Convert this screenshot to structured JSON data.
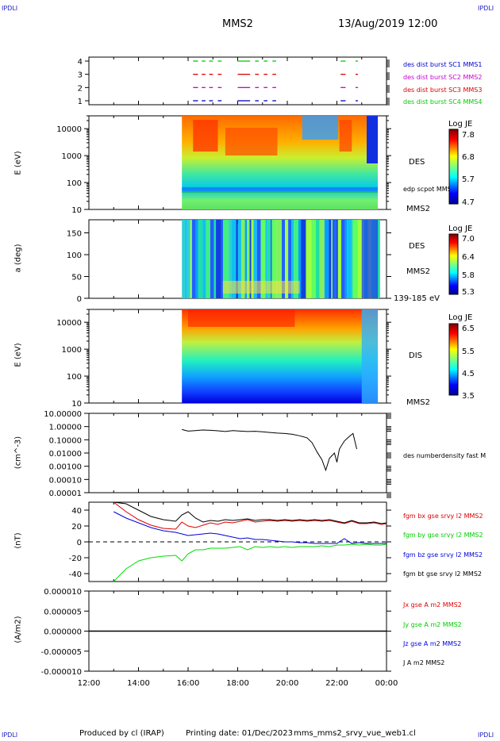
{
  "header": {
    "corner_tl": "IPDLI",
    "corner_tr": "IPDLI",
    "corner_bl": "IPDLI",
    "corner_br": "IPDLI",
    "spacecraft": "MMS2",
    "datetime": "13/Aug/2019 12:00"
  },
  "footer": {
    "produced": "Produced by cl (IRAP)",
    "printing": "Printing date: 01/Dec/2023",
    "file": "mms_mms2_srvy_vue_web1.cl"
  },
  "colors": {
    "mms1": "#0000cc",
    "mms2": "#cc00cc",
    "mms3": "#dd0000",
    "mms4": "#00cc00",
    "bx": "#dd0000",
    "by": "#00dd00",
    "bz": "#0000dd",
    "bt": "#000000"
  },
  "chart_data": [
    {
      "type": "line",
      "id": "burst",
      "ylim": [
        0.7,
        4.3
      ],
      "yticks": [
        "4",
        "3",
        "2",
        "1"
      ],
      "legend": [
        {
          "label": "des dist burst SC1 MMS1",
          "color": "#0000cc"
        },
        {
          "label": "des dist burst SC2 MMS2",
          "color": "#cc00cc"
        },
        {
          "label": "des dist burst SC3 MMS3",
          "color": "#dd0000"
        },
        {
          "label": "des dist burst SC4 MMS4",
          "color": "#00cc00"
        }
      ],
      "intervals_hours": [
        [
          16.2,
          16.4
        ],
        [
          16.55,
          16.7
        ],
        [
          16.85,
          17.0
        ],
        [
          17.2,
          17.35
        ],
        [
          18.0,
          18.5
        ],
        [
          18.7,
          18.85
        ],
        [
          19.05,
          19.2
        ],
        [
          19.4,
          19.55
        ],
        [
          22.15,
          22.35
        ],
        [
          22.75,
          22.85
        ]
      ]
    },
    {
      "type": "heatmap",
      "id": "des-energy",
      "ylabel": "E (eV)",
      "yscale": "log",
      "ylim": [
        10,
        30000
      ],
      "yticks": [
        "10000",
        "1000",
        "100",
        "10"
      ],
      "colorbar": {
        "title": "Log JE",
        "ticks": [
          "7.8",
          "6.8",
          "5.7",
          "4.7"
        ]
      },
      "labels": [
        "DES",
        "edp scpot MMS2",
        "MMS2"
      ]
    },
    {
      "type": "heatmap",
      "id": "des-pitch",
      "ylabel": "a (deg)",
      "ylim": [
        0,
        180
      ],
      "yticks": [
        "150",
        "100",
        "50",
        "0"
      ],
      "colorbar": {
        "title": "Log JE",
        "ticks": [
          "7.0",
          "6.4",
          "5.8",
          "5.3"
        ]
      },
      "labels": [
        "DES",
        "MMS2",
        "139-185 eV"
      ]
    },
    {
      "type": "heatmap",
      "id": "dis-energy",
      "ylabel": "E (eV)",
      "yscale": "log",
      "ylim": [
        10,
        30000
      ],
      "yticks": [
        "10000",
        "1000",
        "100",
        "10"
      ],
      "colorbar": {
        "title": "Log JE",
        "ticks": [
          "6.5",
          "5.5",
          "4.5",
          "3.5"
        ]
      },
      "labels": [
        "DIS",
        "MMS2"
      ]
    },
    {
      "type": "line",
      "id": "density",
      "ylabel": "(cm^-3)",
      "yscale": "log",
      "ylim": [
        0.0001,
        10
      ],
      "yticks": [
        "10.00000",
        "1.00000",
        "0.10000",
        "0.01000",
        "0.00100",
        "0.00010",
        "0.00001"
      ],
      "series": [
        {
          "name": "des numberdensity fast M",
          "color": "#000000",
          "x": [
            15.75,
            16.0,
            16.3,
            16.6,
            16.9,
            17.2,
            17.5,
            17.8,
            18.1,
            18.4,
            18.7,
            19.0,
            19.3,
            19.6,
            19.9,
            20.2,
            20.5,
            20.8,
            21.0,
            21.2,
            21.4,
            21.55,
            21.7,
            21.9,
            22.0,
            22.1,
            22.3,
            22.5,
            22.65,
            22.8
          ],
          "y": [
            0.6,
            0.45,
            0.5,
            0.55,
            0.52,
            0.48,
            0.42,
            0.5,
            0.45,
            0.42,
            0.44,
            0.4,
            0.36,
            0.32,
            0.3,
            0.26,
            0.2,
            0.14,
            0.06,
            0.012,
            0.003,
            0.0005,
            0.004,
            0.01,
            0.002,
            0.02,
            0.08,
            0.18,
            0.3,
            0.02
          ]
        }
      ]
    },
    {
      "type": "line",
      "id": "magnetic",
      "ylabel": "(nT)",
      "ylim": [
        -50,
        50
      ],
      "yticks": [
        "40",
        "20",
        "0",
        "-20",
        "-40"
      ],
      "x": [
        13.0,
        13.5,
        14.0,
        14.5,
        15.0,
        15.5,
        15.75,
        16.0,
        16.3,
        16.6,
        16.9,
        17.2,
        17.5,
        17.8,
        18.1,
        18.4,
        18.7,
        19.0,
        19.3,
        19.6,
        19.9,
        20.2,
        20.5,
        20.8,
        21.1,
        21.4,
        21.7,
        22.0,
        22.3,
        22.6,
        22.9,
        23.2,
        23.5,
        23.8,
        24.0
      ],
      "series": [
        {
          "name": "fgm bx gse srvy l2 MMS2",
          "color": "#dd0000",
          "y": [
            50,
            38,
            28,
            21,
            17,
            16,
            25,
            20,
            18,
            21,
            24,
            22,
            25,
            24,
            26,
            28,
            25,
            26,
            27,
            26,
            27,
            26,
            27,
            26,
            27,
            26,
            27,
            25,
            23,
            26,
            23,
            23,
            24,
            22,
            23
          ]
        },
        {
          "name": "fgm by gse srvy l2 MMS2",
          "color": "#00dd00",
          "y": [
            -50,
            -34,
            -24,
            -20,
            -18,
            -17,
            -24,
            -15,
            -10,
            -10,
            -8,
            -8,
            -8,
            -7,
            -6,
            -10,
            -6,
            -7,
            -6,
            -7,
            -6,
            -7,
            -6,
            -6,
            -6,
            -5,
            -6,
            -4,
            -4,
            -3,
            -4,
            -3,
            -4,
            -4,
            -3
          ]
        },
        {
          "name": "fgm bz gse srvy l2 MMS2",
          "color": "#0000dd",
          "y": [
            38,
            30,
            24,
            18,
            14,
            12,
            10,
            8,
            9,
            10,
            11,
            10,
            8,
            6,
            4,
            5,
            3,
            3,
            2,
            1,
            0,
            0,
            -1,
            -1,
            -2,
            -2,
            -2,
            -2,
            4,
            -2,
            -1,
            -2,
            -2,
            -2,
            -2
          ]
        },
        {
          "name": "fgm bt gse srvy l2 MMS2",
          "color": "#000000",
          "y": [
            50,
            48,
            40,
            32,
            28,
            26,
            34,
            38,
            30,
            25,
            27,
            26,
            28,
            27,
            28,
            29,
            27,
            28,
            28,
            27,
            28,
            27,
            28,
            27,
            28,
            27,
            28,
            26,
            24,
            27,
            24,
            24,
            25,
            23,
            24
          ]
        }
      ]
    },
    {
      "type": "line",
      "id": "current",
      "ylabel": "(A/m2)",
      "ylim": [
        -1e-05,
        1e-05
      ],
      "yticks": [
        "0.000010",
        "0.000005",
        "0.000000",
        "-0.000005",
        "-0.000010"
      ],
      "series": [
        {
          "name": "Jx gse A m2 MMS2",
          "color": "#dd0000"
        },
        {
          "name": "Jy gse A m2 MMS2",
          "color": "#00dd00"
        },
        {
          "name": "Jz gse A m2 MMS2",
          "color": "#0000dd"
        },
        {
          "name": "J A m2 MMS2",
          "color": "#000000"
        }
      ],
      "x": [
        12.0,
        24.0
      ],
      "y": [
        0.0,
        0.0
      ]
    }
  ],
  "xaxis": {
    "xlim": [
      12,
      24
    ],
    "ticks": [
      "12:00",
      "14:00",
      "16:00",
      "18:00",
      "20:00",
      "22:00",
      "00:00"
    ]
  }
}
